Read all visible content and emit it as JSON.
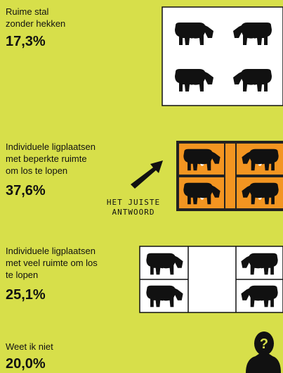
{
  "options": [
    {
      "label": "Ruime stal\nzonder hekken",
      "percentage": "17,3%"
    },
    {
      "label": "Individuele ligplaatsen\nmet beperkte ruimte\nom los te lopen",
      "percentage": "37,6%"
    },
    {
      "label": "Individuele ligplaatsen\nmet veel ruimte om los\nte lopen",
      "percentage": "25,1%"
    },
    {
      "label": "Weet ik niet",
      "percentage": "20,0%"
    }
  ],
  "annotation": "HET JUISTE\nANTWOORD"
}
